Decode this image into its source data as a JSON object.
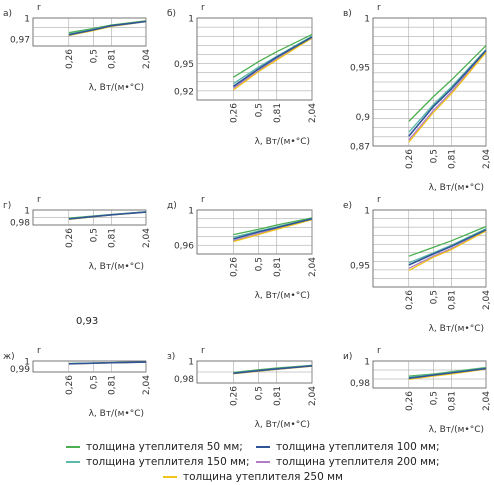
{
  "x_axis": {
    "label": "λ, Вт/(м•°С)",
    "ticks": [
      0.26,
      0.5,
      0.81,
      2.04
    ],
    "tick_labels": [
      "0,26",
      "0,5",
      "0,81",
      "2,04"
    ],
    "range": [
      0.1,
      2.04
    ]
  },
  "y_axis_symbol": "r",
  "note": "0,93",
  "series_colors": {
    "s50": "#4caf50",
    "s100": "#2f5597",
    "s150": "#5ab9a8",
    "s200": "#b07cc6",
    "s250": "#f0c419"
  },
  "legend": [
    {
      "key": "s50",
      "label": "толщина утеплителя 50 мм;"
    },
    {
      "key": "s100",
      "label": "толщина утеплителя 100 мм;"
    },
    {
      "key": "s150",
      "label": "толщина утеплителя 150 мм;"
    },
    {
      "key": "s200",
      "label": "толщина утеплителя 200 мм;"
    },
    {
      "key": "s250",
      "label": "толщина утеплителя 250 мм"
    }
  ],
  "chart_data": [
    {
      "type": "line",
      "panel": "а)",
      "ylim": [
        0.96,
        1
      ],
      "yticks": [
        0.97,
        1
      ],
      "ytick_labels": [
        "0,97",
        "1"
      ],
      "x": [
        0.26,
        0.5,
        0.81,
        2.04
      ],
      "series": [
        {
          "key": "s50",
          "values": [
            0.979,
            0.985,
            0.99,
            0.996
          ]
        },
        {
          "key": "s100",
          "values": [
            0.976,
            0.983,
            0.989,
            0.995
          ]
        },
        {
          "key": "s150",
          "values": [
            0.977,
            0.984,
            0.989,
            0.995
          ]
        },
        {
          "key": "s200",
          "values": [
            0.975,
            0.983,
            0.988,
            0.995
          ]
        },
        {
          "key": "s250",
          "values": [
            0.975,
            0.982,
            0.988,
            0.995
          ]
        }
      ]
    },
    {
      "type": "line",
      "panel": "б)",
      "ylim": [
        0.91,
        1
      ],
      "yticks": [
        0.92,
        0.95,
        1
      ],
      "ytick_labels": [
        "0,92",
        "0,95",
        "1"
      ],
      "x": [
        0.26,
        0.5,
        0.81,
        2.04
      ],
      "series": [
        {
          "key": "s50",
          "values": [
            0.935,
            0.952,
            0.963,
            0.982
          ]
        },
        {
          "key": "s100",
          "values": [
            0.925,
            0.944,
            0.957,
            0.979
          ]
        },
        {
          "key": "s150",
          "values": [
            0.928,
            0.946,
            0.958,
            0.98
          ]
        },
        {
          "key": "s200",
          "values": [
            0.923,
            0.942,
            0.955,
            0.978
          ]
        },
        {
          "key": "s250",
          "values": [
            0.921,
            0.941,
            0.954,
            0.978
          ]
        }
      ]
    },
    {
      "type": "line",
      "panel": "в)",
      "ylim": [
        0.87,
        1
      ],
      "yticks": [
        0.87,
        0.9,
        0.95,
        1
      ],
      "ytick_labels": [
        "0,87",
        "0,9",
        "0,95",
        "1"
      ],
      "x": [
        0.26,
        0.5,
        0.81,
        2.04
      ],
      "series": [
        {
          "key": "s50",
          "values": [
            0.895,
            0.92,
            0.937,
            0.972
          ]
        },
        {
          "key": "s100",
          "values": [
            0.88,
            0.91,
            0.928,
            0.967
          ]
        },
        {
          "key": "s150",
          "values": [
            0.884,
            0.912,
            0.93,
            0.968
          ]
        },
        {
          "key": "s200",
          "values": [
            0.876,
            0.906,
            0.925,
            0.966
          ]
        },
        {
          "key": "s250",
          "values": [
            0.874,
            0.904,
            0.923,
            0.965
          ]
        }
      ]
    },
    {
      "type": "line",
      "panel": "г)",
      "ylim": [
        0.975,
        1
      ],
      "yticks": [
        0.98,
        1
      ],
      "ytick_labels": [
        "0,98",
        "1"
      ],
      "x": [
        0.26,
        0.5,
        0.81,
        2.04
      ],
      "series": [
        {
          "key": "s50",
          "values": [
            0.9865,
            0.99,
            0.9925,
            0.997
          ]
        },
        {
          "key": "s100",
          "values": [
            0.985,
            0.989,
            0.992,
            0.9965
          ]
        },
        {
          "key": "s150",
          "values": [
            0.9855,
            0.9893,
            0.9922,
            0.9967
          ]
        },
        {
          "key": "s200",
          "values": [
            0.9848,
            0.9888,
            0.9918,
            0.9965
          ]
        },
        {
          "key": "s250",
          "values": [
            0.9845,
            0.9886,
            0.9916,
            0.9964
          ]
        }
      ]
    },
    {
      "type": "line",
      "panel": "д)",
      "ylim": [
        0.95,
        1
      ],
      "yticks": [
        0.96,
        1
      ],
      "ytick_labels": [
        "0,96",
        "1"
      ],
      "x": [
        0.26,
        0.5,
        0.81,
        2.04
      ],
      "series": [
        {
          "key": "s50",
          "values": [
            0.972,
            0.978,
            0.983,
            0.991
          ]
        },
        {
          "key": "s100",
          "values": [
            0.967,
            0.975,
            0.98,
            0.99
          ]
        },
        {
          "key": "s150",
          "values": [
            0.969,
            0.976,
            0.981,
            0.99
          ]
        },
        {
          "key": "s200",
          "values": [
            0.965,
            0.973,
            0.979,
            0.989
          ]
        },
        {
          "key": "s250",
          "values": [
            0.964,
            0.972,
            0.978,
            0.989
          ]
        }
      ]
    },
    {
      "type": "line",
      "panel": "е)",
      "ylim": [
        0.93,
        1
      ],
      "yticks": [
        0.95,
        1
      ],
      "ytick_labels": [
        "0,95",
        "1"
      ],
      "x": [
        0.26,
        0.5,
        0.81,
        2.04
      ],
      "series": [
        {
          "key": "s50",
          "values": [
            0.958,
            0.966,
            0.972,
            0.985
          ]
        },
        {
          "key": "s100",
          "values": [
            0.95,
            0.96,
            0.967,
            0.982
          ]
        },
        {
          "key": "s150",
          "values": [
            0.952,
            0.961,
            0.968,
            0.983
          ]
        },
        {
          "key": "s200",
          "values": [
            0.947,
            0.958,
            0.965,
            0.981
          ]
        },
        {
          "key": "s250",
          "values": [
            0.945,
            0.957,
            0.964,
            0.981
          ]
        }
      ]
    },
    {
      "type": "line",
      "panel": "ж)",
      "ylim": [
        0.985,
        1
      ],
      "yticks": [
        0.99,
        1
      ],
      "ytick_labels": [
        "0,99",
        "1"
      ],
      "x": [
        0.26,
        0.5,
        0.81,
        2.04
      ],
      "series": [
        {
          "key": "s50",
          "values": [
            0.9965,
            0.9972,
            0.9978,
            0.9986
          ]
        },
        {
          "key": "s100",
          "values": [
            0.9962,
            0.997,
            0.9976,
            0.9985
          ]
        },
        {
          "key": "s150",
          "values": [
            0.9963,
            0.9971,
            0.9977,
            0.9985
          ]
        },
        {
          "key": "s200",
          "values": [
            0.9961,
            0.9969,
            0.9975,
            0.9984
          ]
        },
        {
          "key": "s250",
          "values": [
            0.996,
            0.9968,
            0.9975,
            0.9984
          ]
        }
      ]
    },
    {
      "type": "line",
      "panel": "з)",
      "ylim": [
        0.975,
        1
      ],
      "yticks": [
        0.98,
        1
      ],
      "ytick_labels": [
        "0,98",
        "1"
      ],
      "x": [
        0.26,
        0.5,
        0.81,
        2.04
      ],
      "series": [
        {
          "key": "s50",
          "values": [
            0.987,
            0.99,
            0.992,
            0.995
          ]
        },
        {
          "key": "s100",
          "values": [
            0.986,
            0.989,
            0.991,
            0.9945
          ]
        },
        {
          "key": "s150",
          "values": [
            0.9865,
            0.9893,
            0.9913,
            0.9947
          ]
        },
        {
          "key": "s200",
          "values": [
            0.9858,
            0.9886,
            0.9907,
            0.9942
          ]
        },
        {
          "key": "s250",
          "values": [
            0.9855,
            0.9884,
            0.9905,
            0.994
          ]
        }
      ]
    },
    {
      "type": "line",
      "panel": "и)",
      "ylim": [
        0.975,
        1
      ],
      "yticks": [
        0.98,
        1
      ],
      "ytick_labels": [
        "0,98",
        "1"
      ],
      "x": [
        0.26,
        0.5,
        0.81,
        2.04
      ],
      "series": [
        {
          "key": "s50",
          "values": [
            0.986,
            0.988,
            0.99,
            0.994
          ]
        },
        {
          "key": "s100",
          "values": [
            0.984,
            0.987,
            0.989,
            0.993
          ]
        },
        {
          "key": "s150",
          "values": [
            0.985,
            0.9875,
            0.9895,
            0.9935
          ]
        },
        {
          "key": "s200",
          "values": [
            0.9835,
            0.9865,
            0.9885,
            0.9928
          ]
        },
        {
          "key": "s250",
          "values": [
            0.983,
            0.986,
            0.988,
            0.9925
          ]
        }
      ]
    }
  ]
}
